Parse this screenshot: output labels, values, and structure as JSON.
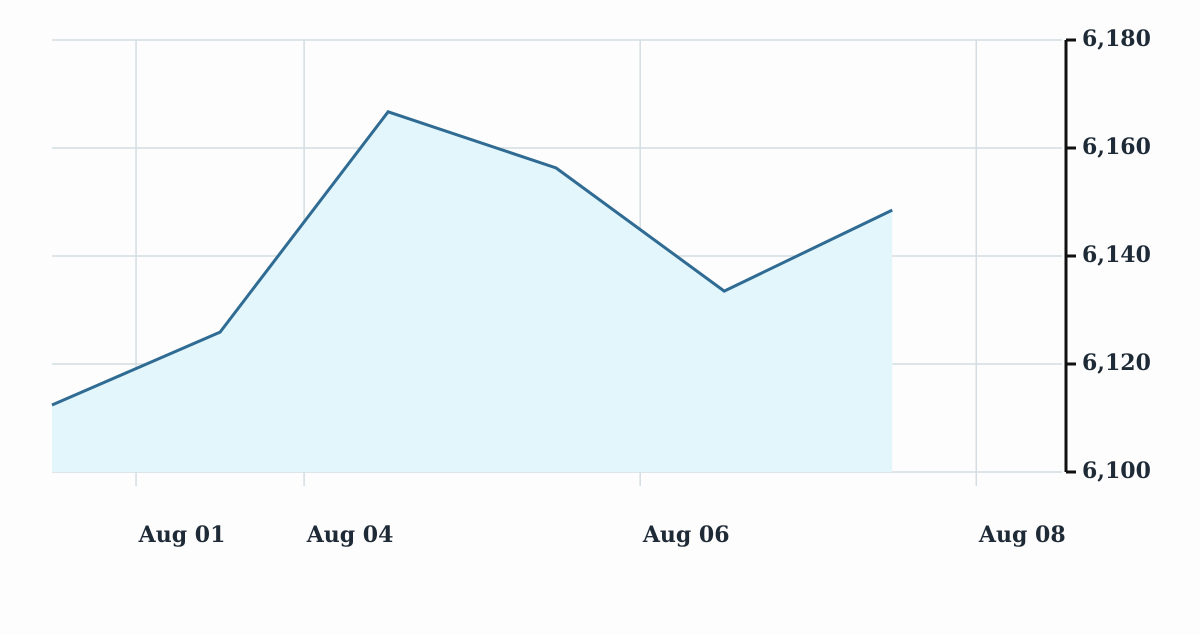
{
  "chart_data": {
    "type": "area",
    "x": [
      0,
      1,
      2,
      3,
      4,
      5
    ],
    "values": [
      6112.4,
      6125.9,
      6166.7,
      6156.3,
      6133.5,
      6148.5
    ],
    "color": "#2f6b93",
    "fill": "#e2f6fc",
    "xlim": [
      0,
      6.01
    ],
    "xticks": [
      {
        "value": 0.5,
        "label": "Aug 01"
      },
      {
        "value": 1.5,
        "label": "Aug 04"
      },
      {
        "value": 3.5,
        "label": "Aug 06"
      },
      {
        "value": 5.5,
        "label": "Aug 08"
      }
    ],
    "ylim": [
      6100,
      6180
    ],
    "yticks": [
      {
        "value": 6100,
        "label": "6,100"
      },
      {
        "value": 6120,
        "label": "6,120"
      },
      {
        "value": 6140,
        "label": "6,140"
      },
      {
        "value": 6160,
        "label": "6,160"
      },
      {
        "value": 6180,
        "label": "6,180"
      }
    ],
    "grid": true,
    "y_axis_side": "right"
  }
}
